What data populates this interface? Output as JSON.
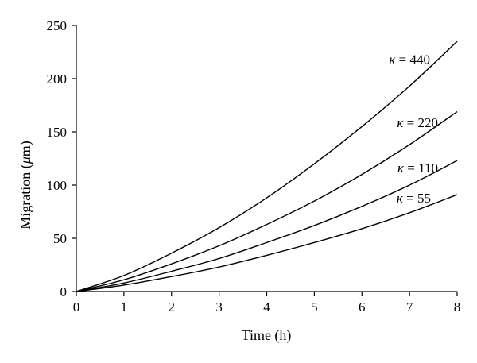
{
  "chart_data": {
    "type": "line",
    "xlabel": "Time (h)",
    "ylabel_prefix": "Migration (",
    "ylabel_unit_italic": "μ",
    "ylabel_suffix": "m)",
    "xlim": [
      0,
      8
    ],
    "ylim": [
      0,
      250
    ],
    "xticks": [
      0,
      1,
      2,
      3,
      4,
      5,
      6,
      7,
      8
    ],
    "yticks": [
      0,
      50,
      100,
      150,
      200,
      250
    ],
    "grid": false,
    "legend": "inline labels near curve ends",
    "x": [
      0,
      1,
      2,
      3,
      4,
      5,
      6,
      7,
      8
    ],
    "series": [
      {
        "name": "κ = 440",
        "symbol": "κ",
        "value_text": " = 440",
        "values": [
          0,
          15,
          36,
          60,
          88,
          120,
          155,
          193,
          235
        ]
      },
      {
        "name": "κ = 220",
        "symbol": "κ",
        "value_text": " = 220",
        "values": [
          0,
          11,
          26,
          43,
          63,
          85,
          110,
          138,
          169
        ]
      },
      {
        "name": "κ = 110",
        "symbol": "κ",
        "value_text": " = 110",
        "values": [
          0,
          8,
          19,
          31,
          46,
          62,
          80,
          100,
          123
        ]
      },
      {
        "name": "κ = 55",
        "symbol": "κ",
        "value_text": " = 55",
        "values": [
          0,
          6,
          14,
          23,
          34,
          46,
          59,
          74,
          91
        ]
      }
    ]
  }
}
